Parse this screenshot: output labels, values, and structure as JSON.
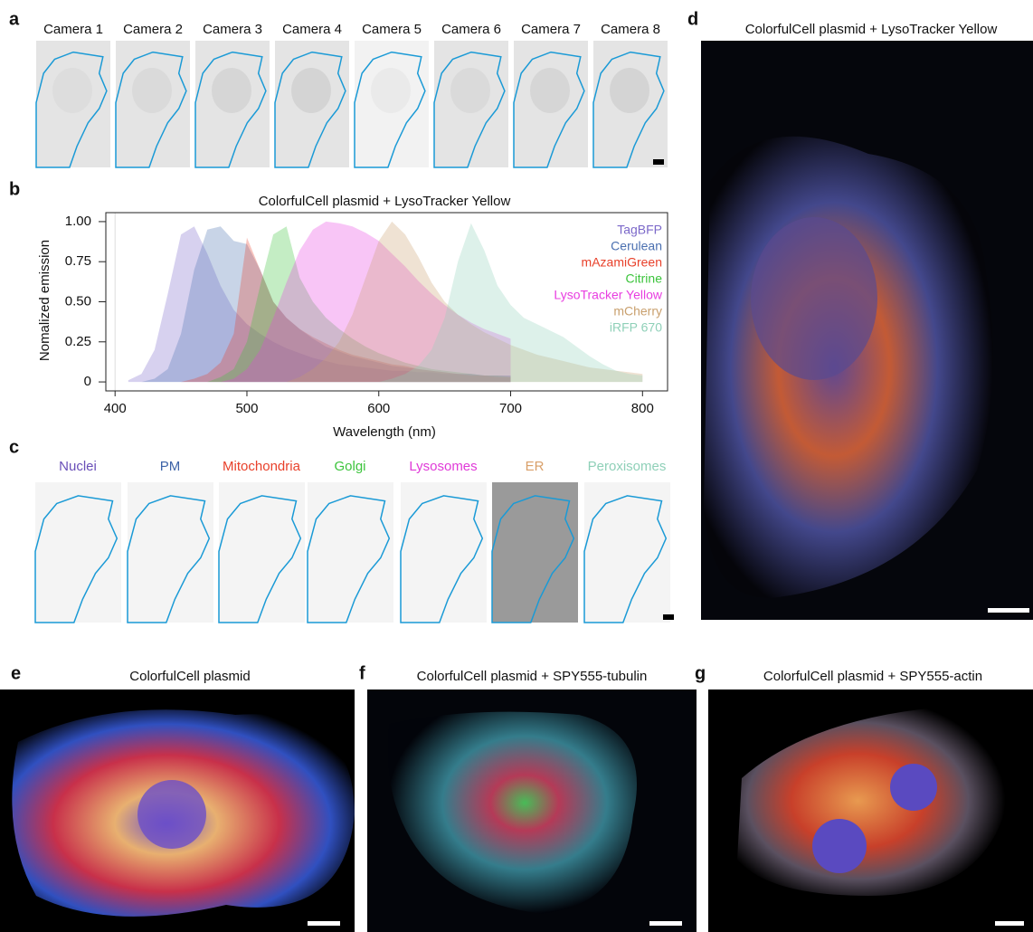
{
  "panels": {
    "a": {
      "label": "a",
      "cameras": [
        "Camera 1",
        "Camera 2",
        "Camera 3",
        "Camera 4",
        "Camera 5",
        "Camera 6",
        "Camera 7",
        "Camera 8"
      ]
    },
    "b": {
      "label": "b"
    },
    "c": {
      "label": "c",
      "organelles": [
        {
          "text": "Nuclei",
          "color": "#6a4fb8"
        },
        {
          "text": "PM",
          "color": "#3d63a8"
        },
        {
          "text": "Mitochondria",
          "color": "#e8402a"
        },
        {
          "text": "Golgi",
          "color": "#3cc43c"
        },
        {
          "text": "Lysosomes",
          "color": "#e03ad8"
        },
        {
          "text": "ER",
          "color": "#d9a06a"
        },
        {
          "text": "Peroxisomes",
          "color": "#8fd0b8"
        }
      ]
    },
    "d": {
      "label": "d",
      "title": "ColorfulCell plasmid + LysoTracker Yellow"
    },
    "e": {
      "label": "e",
      "title": "ColorfulCell plasmid"
    },
    "f": {
      "label": "f",
      "title": "ColorfulCell plasmid + SPY555-tubulin"
    },
    "g": {
      "label": "g",
      "title": "ColorfulCell plasmid + SPY555-actin"
    }
  },
  "chart_data": {
    "type": "area",
    "title": "ColorfulCell plasmid + LysoTracker Yellow",
    "x_label": "Wavelength (nm)",
    "y_label": "Nomalized emission",
    "x": [
      400,
      410,
      420,
      430,
      440,
      450,
      460,
      470,
      480,
      490,
      500,
      510,
      520,
      530,
      540,
      550,
      560,
      570,
      580,
      590,
      600,
      610,
      620,
      630,
      640,
      650,
      660,
      670,
      680,
      690,
      700,
      710,
      720,
      730,
      740,
      750,
      760,
      770,
      780,
      790,
      800
    ],
    "series": [
      {
        "name": "TagBFP",
        "color": "#7b68c9",
        "values": [
          null,
          0.01,
          0.05,
          0.2,
          0.55,
          0.92,
          0.97,
          0.8,
          0.6,
          0.45,
          0.36,
          0.3,
          0.25,
          0.21,
          0.18,
          0.15,
          0.13,
          0.11,
          0.1,
          0.09,
          0.08,
          0.07,
          0.07,
          0.06,
          0.06,
          0.05,
          0.05,
          0.05,
          0.04,
          0.04,
          0.04,
          null,
          null,
          null,
          null,
          null,
          null,
          null,
          null,
          null,
          null
        ]
      },
      {
        "name": "Cerulean",
        "color": "#4a6fb0",
        "values": [
          null,
          null,
          0,
          0.02,
          0.08,
          0.3,
          0.7,
          0.95,
          0.97,
          0.88,
          0.86,
          0.7,
          0.5,
          0.4,
          0.33,
          0.27,
          0.22,
          0.19,
          0.16,
          0.14,
          0.12,
          0.1,
          0.09,
          0.08,
          0.07,
          0.06,
          0.05,
          0.05,
          0.04,
          0.04,
          0.04,
          null,
          null,
          null,
          null,
          null,
          null,
          null,
          null,
          null,
          null
        ]
      },
      {
        "name": "mAzamiGreen",
        "color": "#e8402a",
        "values": [
          null,
          null,
          null,
          null,
          null,
          0,
          0.02,
          0.05,
          0.12,
          0.3,
          0.9,
          0.7,
          0.5,
          0.4,
          0.33,
          0.28,
          0.24,
          0.2,
          0.17,
          0.15,
          0.13,
          0.11,
          0.1,
          0.08,
          0.07,
          0.06,
          0.05,
          0.04,
          0.04,
          0.03,
          0.03,
          null,
          null,
          null,
          null,
          null,
          null,
          null,
          null,
          null,
          null
        ]
      },
      {
        "name": "Citrine",
        "color": "#3cc43c",
        "values": [
          null,
          null,
          null,
          null,
          null,
          null,
          null,
          0,
          0.03,
          0.08,
          0.25,
          0.6,
          0.92,
          0.97,
          0.65,
          0.5,
          0.4,
          0.33,
          0.27,
          0.22,
          0.18,
          0.15,
          0.12,
          0.1,
          0.08,
          0.07,
          0.06,
          0.05,
          0.04,
          0.04,
          0.03,
          null,
          null,
          null,
          null,
          null,
          null,
          null,
          null,
          null,
          null
        ]
      },
      {
        "name": "LysoTracker Yellow",
        "color": "#e83ee0",
        "values": [
          null,
          null,
          null,
          null,
          null,
          null,
          null,
          null,
          0,
          0.02,
          0.08,
          0.2,
          0.4,
          0.62,
          0.82,
          0.95,
          1.0,
          0.99,
          0.97,
          0.93,
          0.88,
          0.8,
          0.72,
          0.63,
          0.55,
          0.48,
          0.42,
          0.37,
          0.33,
          0.3,
          0.27,
          null,
          null,
          null,
          null,
          null,
          null,
          null,
          null,
          null,
          null
        ]
      },
      {
        "name": "mCherry",
        "color": "#c9a06e",
        "values": [
          null,
          null,
          null,
          null,
          null,
          null,
          null,
          null,
          null,
          null,
          null,
          null,
          null,
          0,
          0.03,
          0.08,
          0.15,
          0.25,
          0.42,
          0.65,
          0.88,
          1.0,
          0.92,
          0.78,
          0.62,
          0.5,
          0.42,
          0.36,
          0.31,
          0.27,
          0.23,
          0.2,
          0.17,
          0.15,
          0.13,
          0.11,
          0.09,
          0.08,
          0.07,
          0.06,
          0.05
        ]
      },
      {
        "name": "iRFP 670",
        "color": "#8fd0b8",
        "values": [
          null,
          null,
          null,
          null,
          null,
          null,
          null,
          null,
          null,
          null,
          null,
          null,
          null,
          null,
          null,
          null,
          null,
          null,
          null,
          null,
          0,
          0.02,
          0.05,
          0.1,
          0.2,
          0.4,
          0.75,
          0.99,
          0.82,
          0.6,
          0.48,
          0.4,
          0.36,
          0.32,
          0.28,
          0.22,
          0.16,
          0.11,
          0.07,
          0.05,
          0.04
        ]
      }
    ],
    "xlim": [
      393,
      819
    ],
    "xticks": [
      400,
      500,
      600,
      700,
      800
    ],
    "ylim": [
      -0.056,
      1.056
    ],
    "yticks": [
      0,
      0.25,
      {
        "value": 0.5,
        "label": "0.50"
      },
      0.75,
      {
        "value": 1,
        "label": "1.00"
      }
    ],
    "legend": "top-right",
    "fill_opacity": 0.3
  }
}
